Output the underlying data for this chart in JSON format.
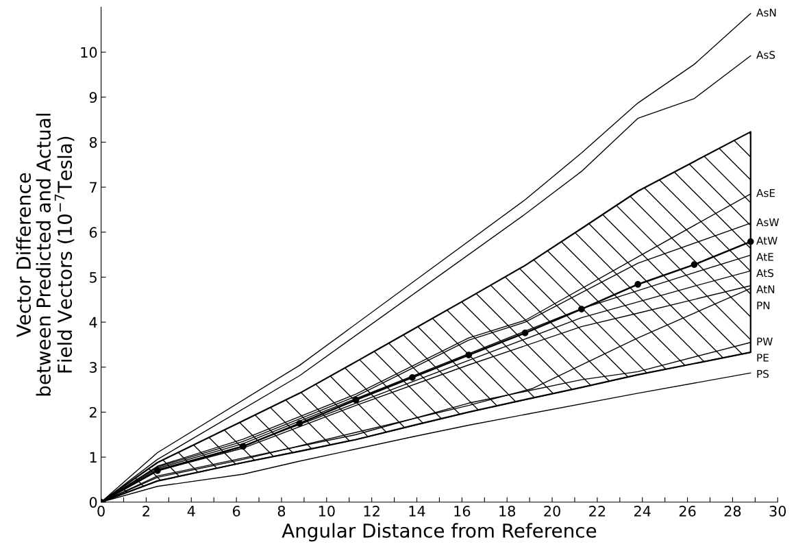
{
  "chart_data": {
    "type": "line",
    "xlabel": "Angular Distance from Reference",
    "ylabel": "Vector Difference\nbetween Predicted and Actual\nField Vectors (10$^{−7}$Tesla)",
    "xlim": [
      0,
      30
    ],
    "ylim": [
      0,
      11
    ],
    "xticks": [
      0,
      {
        "value": 1,
        "label": null
      },
      2,
      {
        "value": 3,
        "label": null
      },
      4,
      {
        "value": 5,
        "label": null
      },
      6,
      {
        "value": 7,
        "label": null
      },
      8,
      {
        "value": 9,
        "label": null
      },
      10,
      {
        "value": 11,
        "label": null
      },
      12,
      {
        "value": 13,
        "label": null
      },
      14,
      {
        "value": 15,
        "label": null
      },
      16,
      {
        "value": 17,
        "label": null
      },
      18,
      {
        "value": 19,
        "label": null
      },
      20,
      {
        "value": 21,
        "label": null
      },
      22,
      {
        "value": 23,
        "label": null
      },
      24,
      {
        "value": 25,
        "label": null
      },
      26,
      {
        "value": 27,
        "label": null
      },
      28,
      {
        "value": 29,
        "label": null
      },
      30
    ],
    "yticks": [
      0,
      1,
      2,
      3,
      4,
      5,
      6,
      7,
      8,
      9,
      10
    ],
    "grid": false,
    "legend": false,
    "line_style": "solid",
    "marker": "none",
    "series": [
      {
        "name": "AsN",
        "color": "#000000",
        "x": [
          0,
          2.5,
          8.8,
          18.8,
          21.3,
          23.8,
          26.3,
          28.8
        ],
        "values": [
          0,
          1.1,
          3.04,
          6.72,
          7.76,
          8.87,
          9.73,
          10.86
        ]
      },
      {
        "name": "AsS",
        "color": "#000000",
        "x": [
          0,
          2.5,
          8.8,
          18.8,
          21.3,
          23.8,
          26.3,
          28.8
        ],
        "values": [
          0,
          0.95,
          2.81,
          6.4,
          7.35,
          8.53,
          8.97,
          9.92
        ]
      },
      {
        "name": "AsE",
        "color": "#000000",
        "x": [
          0,
          2.5,
          6.3,
          11.3,
          16.3,
          18.8,
          23.8,
          28.8
        ],
        "values": [
          0,
          0.8,
          1.4,
          2.4,
          3.65,
          4.04,
          5.45,
          6.85
        ]
      },
      {
        "name": "AsW",
        "color": "#000000",
        "x": [
          0,
          2.5,
          6.3,
          11.3,
          16.3,
          18.8,
          23.8,
          28.8
        ],
        "values": [
          0,
          0.78,
          1.35,
          2.35,
          3.6,
          4.0,
          5.31,
          6.2
        ]
      },
      {
        "name": "AtW",
        "color": "#000000",
        "marker": "circle",
        "x": [
          0,
          2.5,
          6.3,
          8.8,
          11.3,
          13.8,
          16.3,
          18.8,
          21.3,
          23.8,
          26.3,
          28.8
        ],
        "values": [
          0,
          0.7,
          1.24,
          1.75,
          2.27,
          2.77,
          3.27,
          3.76,
          4.29,
          4.84,
          5.28,
          5.79
        ],
        "lower": [
          0,
          0.47,
          0.88,
          1.13,
          1.39,
          1.7,
          2.0,
          2.28,
          2.55,
          2.83,
          3.08,
          3.33
        ],
        "upper": [
          0,
          0.88,
          1.81,
          2.42,
          3.12,
          3.83,
          4.54,
          5.26,
          6.08,
          6.91,
          7.57,
          8.23
        ]
      },
      {
        "name": "AtE",
        "color": "#000000",
        "x": [
          0,
          2.5,
          6.3,
          11.3,
          16.3,
          21.3,
          26.3,
          28.8
        ],
        "values": [
          0,
          0.75,
          1.3,
          2.3,
          3.3,
          4.3,
          5.1,
          5.49
        ]
      },
      {
        "name": "AtS",
        "color": "#000000",
        "x": [
          0,
          2.5,
          6.3,
          11.3,
          16.3,
          21.3,
          26.3,
          28.8
        ],
        "values": [
          0,
          0.72,
          1.25,
          2.2,
          3.15,
          4.1,
          4.8,
          5.14
        ]
      },
      {
        "name": "AtN",
        "color": "#000000",
        "x": [
          0,
          2.5,
          6.3,
          11.3,
          16.3,
          21.3,
          23.8,
          28.8
        ],
        "values": [
          0,
          0.7,
          1.2,
          2.15,
          3.05,
          3.9,
          4.2,
          4.81
        ]
      },
      {
        "name": "PN",
        "color": "#000000",
        "x": [
          0,
          2.5,
          6.3,
          11.3,
          16.3,
          19.1,
          23.8,
          28.8
        ],
        "values": [
          0,
          0.55,
          0.95,
          1.55,
          2.15,
          2.52,
          3.65,
          4.75
        ]
      },
      {
        "name": "PW",
        "color": "#000000",
        "x": [
          0,
          2.5,
          6.3,
          11.3,
          16.3,
          21.3,
          23.8,
          28.8
        ],
        "values": [
          0,
          0.58,
          0.98,
          1.5,
          2.2,
          2.72,
          2.9,
          3.55
        ]
      },
      {
        "name": "PE",
        "color": "#000000",
        "x": [
          0,
          2.5,
          6.3,
          11.3,
          16.3,
          21.3,
          23.8,
          28.8
        ],
        "values": [
          0,
          0.47,
          0.88,
          1.39,
          2.0,
          2.55,
          2.83,
          3.33
        ]
      },
      {
        "name": "PS",
        "color": "#000000",
        "x": [
          0,
          2.5,
          6.3,
          8.8,
          13.8,
          16.3,
          23.8,
          28.8
        ],
        "values": [
          0,
          0.35,
          0.62,
          0.91,
          1.45,
          1.71,
          2.42,
          2.87
        ]
      }
    ]
  }
}
